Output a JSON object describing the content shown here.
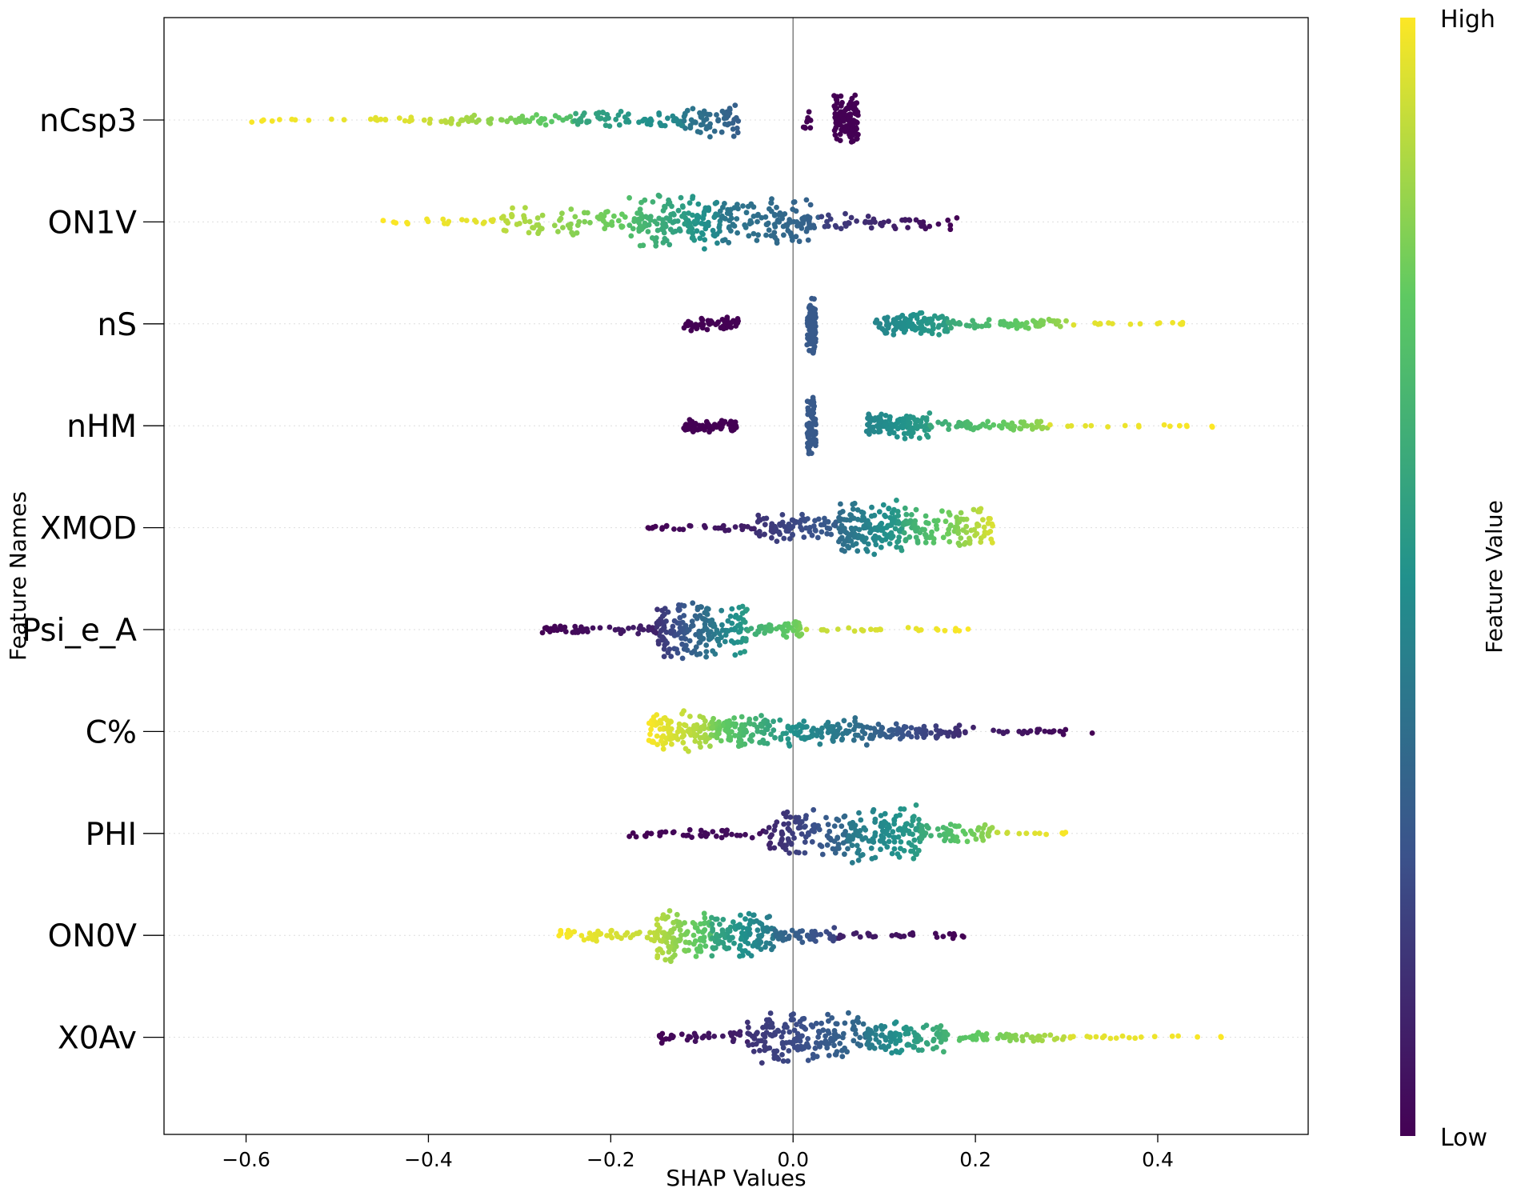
{
  "chart_data": {
    "type": "scatter",
    "subtype": "shap-beeswarm",
    "xlabel": "SHAP Values",
    "ylabel": "Feature Names",
    "xlim": [
      -0.69,
      0.565
    ],
    "xticks": [
      -0.6,
      -0.4,
      -0.2,
      0.0,
      0.2,
      0.4
    ],
    "xtick_labels": [
      "−0.6",
      "−0.4",
      "−0.2",
      "0.0",
      "0.2",
      "0.4"
    ],
    "zero_line": 0.0,
    "grid": "dotted horizontal lines at each feature",
    "colormap": "viridis",
    "colorbar": {
      "title": "Feature Value",
      "high_label": "High",
      "low_label": "Low",
      "colors": [
        "#440154",
        "#3b528b",
        "#21918c",
        "#5ec962",
        "#fde725"
      ]
    },
    "features": [
      {
        "name": "nCsp3",
        "min": -0.63,
        "max": 0.07,
        "clusters": [
          {
            "from": -0.63,
            "to": -0.42,
            "color_low": 1.0,
            "color_high": 0.95,
            "n": 20,
            "spread": 0.2
          },
          {
            "from": -0.42,
            "to": -0.24,
            "color_low": 0.95,
            "color_high": 0.7,
            "n": 60,
            "spread": 0.35
          },
          {
            "from": -0.24,
            "to": -0.12,
            "color_low": 0.6,
            "color_high": 0.45,
            "n": 60,
            "spread": 0.55
          },
          {
            "from": -0.12,
            "to": -0.06,
            "color_low": 0.4,
            "color_high": 0.3,
            "n": 60,
            "spread": 1.0
          },
          {
            "from": 0.01,
            "to": 0.02,
            "color_low": 0.0,
            "color_high": 0.0,
            "n": 12,
            "spread": 0.7
          },
          {
            "from": 0.045,
            "to": 0.072,
            "color_low": 0.0,
            "color_high": 0.0,
            "n": 120,
            "spread": 1.5
          }
        ]
      },
      {
        "name": "ON1V",
        "min": -0.45,
        "max": 0.18,
        "clusters": [
          {
            "from": -0.45,
            "to": -0.32,
            "color_low": 1.0,
            "color_high": 0.95,
            "n": 20,
            "spread": 0.2
          },
          {
            "from": -0.32,
            "to": -0.18,
            "color_low": 0.9,
            "color_high": 0.75,
            "n": 70,
            "spread": 0.9
          },
          {
            "from": -0.18,
            "to": -0.08,
            "color_low": 0.7,
            "color_high": 0.45,
            "n": 150,
            "spread": 1.7
          },
          {
            "from": -0.08,
            "to": 0.03,
            "color_low": 0.4,
            "color_high": 0.3,
            "n": 120,
            "spread": 1.4
          },
          {
            "from": 0.03,
            "to": 0.18,
            "color_low": 0.2,
            "color_high": 0.0,
            "n": 50,
            "spread": 0.5
          }
        ]
      },
      {
        "name": "nS",
        "min": -0.12,
        "max": 0.51,
        "clusters": [
          {
            "from": -0.12,
            "to": -0.06,
            "color_low": 0.0,
            "color_high": 0.0,
            "n": 60,
            "spread": 0.4
          },
          {
            "from": 0.015,
            "to": 0.025,
            "color_low": 0.28,
            "color_high": 0.28,
            "n": 80,
            "spread": 1.8
          },
          {
            "from": 0.09,
            "to": 0.17,
            "color_low": 0.45,
            "color_high": 0.55,
            "n": 110,
            "spread": 0.7
          },
          {
            "from": 0.17,
            "to": 0.3,
            "color_low": 0.6,
            "color_high": 0.85,
            "n": 60,
            "spread": 0.3
          },
          {
            "from": 0.3,
            "to": 0.51,
            "color_low": 0.95,
            "color_high": 1.0,
            "n": 16,
            "spread": 0.1
          }
        ]
      },
      {
        "name": "nHM",
        "min": -0.12,
        "max": 0.46,
        "clusters": [
          {
            "from": -0.12,
            "to": -0.06,
            "color_low": 0.0,
            "color_high": 0.0,
            "n": 60,
            "spread": 0.4
          },
          {
            "from": 0.015,
            "to": 0.025,
            "color_low": 0.28,
            "color_high": 0.28,
            "n": 80,
            "spread": 1.8
          },
          {
            "from": 0.08,
            "to": 0.15,
            "color_low": 0.45,
            "color_high": 0.55,
            "n": 110,
            "spread": 0.8
          },
          {
            "from": 0.15,
            "to": 0.28,
            "color_low": 0.6,
            "color_high": 0.85,
            "n": 60,
            "spread": 0.3
          },
          {
            "from": 0.28,
            "to": 0.46,
            "color_low": 0.95,
            "color_high": 1.0,
            "n": 16,
            "spread": 0.1
          }
        ]
      },
      {
        "name": "XMOD",
        "min": -0.16,
        "max": 0.22,
        "clusters": [
          {
            "from": -0.16,
            "to": -0.04,
            "color_low": 0.0,
            "color_high": 0.1,
            "n": 30,
            "spread": 0.2
          },
          {
            "from": -0.04,
            "to": 0.05,
            "color_low": 0.15,
            "color_high": 0.3,
            "n": 80,
            "spread": 0.9
          },
          {
            "from": 0.05,
            "to": 0.12,
            "color_low": 0.35,
            "color_high": 0.55,
            "n": 150,
            "spread": 1.7
          },
          {
            "from": 0.12,
            "to": 0.22,
            "color_low": 0.6,
            "color_high": 0.95,
            "n": 110,
            "spread": 1.4
          }
        ]
      },
      {
        "name": "Psi_e_A",
        "min": -0.275,
        "max": 0.195,
        "clusters": [
          {
            "from": -0.275,
            "to": -0.15,
            "color_low": 0.0,
            "color_high": 0.1,
            "n": 50,
            "spread": 0.3
          },
          {
            "from": -0.15,
            "to": -0.05,
            "color_low": 0.15,
            "color_high": 0.55,
            "n": 190,
            "spread": 1.7
          },
          {
            "from": -0.05,
            "to": 0.01,
            "color_low": 0.6,
            "color_high": 0.8,
            "n": 50,
            "spread": 0.5
          },
          {
            "from": 0.01,
            "to": 0.195,
            "color_low": 0.9,
            "color_high": 1.0,
            "n": 26,
            "spread": 0.15
          }
        ]
      },
      {
        "name": "C%",
        "min": -0.16,
        "max": 0.33,
        "clusters": [
          {
            "from": -0.16,
            "to": -0.09,
            "color_low": 1.0,
            "color_high": 0.85,
            "n": 100,
            "spread": 1.2
          },
          {
            "from": -0.09,
            "to": 0.0,
            "color_low": 0.8,
            "color_high": 0.5,
            "n": 110,
            "spread": 1.0
          },
          {
            "from": 0.0,
            "to": 0.1,
            "color_low": 0.5,
            "color_high": 0.3,
            "n": 100,
            "spread": 0.8
          },
          {
            "from": 0.1,
            "to": 0.2,
            "color_low": 0.3,
            "color_high": 0.1,
            "n": 70,
            "spread": 0.5
          },
          {
            "from": 0.2,
            "to": 0.33,
            "color_low": 0.1,
            "color_high": 0.0,
            "n": 24,
            "spread": 0.2
          }
        ]
      },
      {
        "name": "PHI",
        "min": -0.18,
        "max": 0.305,
        "clusters": [
          {
            "from": -0.18,
            "to": -0.03,
            "color_low": 0.0,
            "color_high": 0.05,
            "n": 40,
            "spread": 0.3
          },
          {
            "from": -0.03,
            "to": 0.06,
            "color_low": 0.1,
            "color_high": 0.35,
            "n": 100,
            "spread": 1.4
          },
          {
            "from": 0.06,
            "to": 0.14,
            "color_low": 0.4,
            "color_high": 0.55,
            "n": 130,
            "spread": 1.7
          },
          {
            "from": 0.14,
            "to": 0.22,
            "color_low": 0.6,
            "color_high": 0.85,
            "n": 60,
            "spread": 0.6
          },
          {
            "from": 0.22,
            "to": 0.305,
            "color_low": 0.9,
            "color_high": 1.0,
            "n": 12,
            "spread": 0.1
          }
        ]
      },
      {
        "name": "ON0V",
        "min": -0.26,
        "max": 0.19,
        "clusters": [
          {
            "from": -0.26,
            "to": -0.15,
            "color_low": 1.0,
            "color_high": 0.9,
            "n": 50,
            "spread": 0.4
          },
          {
            "from": -0.15,
            "to": -0.09,
            "color_low": 0.9,
            "color_high": 0.7,
            "n": 110,
            "spread": 1.6
          },
          {
            "from": -0.09,
            "to": -0.02,
            "color_low": 0.6,
            "color_high": 0.4,
            "n": 110,
            "spread": 1.4
          },
          {
            "from": -0.02,
            "to": 0.05,
            "color_low": 0.35,
            "color_high": 0.2,
            "n": 50,
            "spread": 0.5
          },
          {
            "from": 0.05,
            "to": 0.19,
            "color_low": 0.1,
            "color_high": 0.0,
            "n": 30,
            "spread": 0.2
          }
        ]
      },
      {
        "name": "X0Av",
        "min": -0.155,
        "max": 0.48,
        "clusters": [
          {
            "from": -0.155,
            "to": -0.05,
            "color_low": 0.0,
            "color_high": 0.1,
            "n": 35,
            "spread": 0.4
          },
          {
            "from": -0.05,
            "to": 0.08,
            "color_low": 0.15,
            "color_high": 0.35,
            "n": 170,
            "spread": 1.7
          },
          {
            "from": 0.08,
            "to": 0.17,
            "color_low": 0.4,
            "color_high": 0.65,
            "n": 110,
            "spread": 1.0
          },
          {
            "from": 0.17,
            "to": 0.3,
            "color_low": 0.7,
            "color_high": 0.9,
            "n": 50,
            "spread": 0.3
          },
          {
            "from": 0.3,
            "to": 0.48,
            "color_low": 0.95,
            "color_high": 1.0,
            "n": 20,
            "spread": 0.1
          }
        ]
      }
    ]
  }
}
